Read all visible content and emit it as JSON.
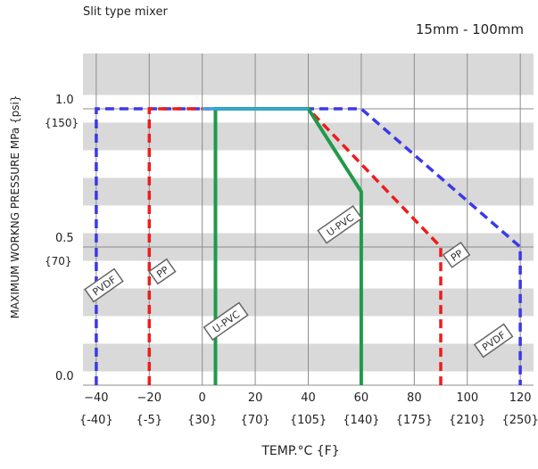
{
  "header": {
    "subtitle": "Slit type mixer",
    "size_range": "15mm - 100mm"
  },
  "chart_data": {
    "type": "line",
    "title": "",
    "xlabel": "TEMP.°C {F}",
    "ylabel": "MAXIMUM WORKNG PRESSURE   MPa {psi}",
    "xlim": [
      -45,
      125
    ],
    "ylim": [
      0.0,
      1.2
    ],
    "x_ticks": [
      {
        "c": -40,
        "f": "{-40}"
      },
      {
        "c": -20,
        "f": "{-5}"
      },
      {
        "c": 0,
        "f": "{30}"
      },
      {
        "c": 20,
        "f": "{70}"
      },
      {
        "c": 40,
        "f": "{105}"
      },
      {
        "c": 60,
        "f": "{140}"
      },
      {
        "c": 80,
        "f": "{175}"
      },
      {
        "c": 100,
        "f": "{210}"
      },
      {
        "c": 120,
        "f": "{250}"
      }
    ],
    "y_ticks": [
      {
        "value": 0.0,
        "label": "0.0",
        "psi": ""
      },
      {
        "value": 0.5,
        "label": "0.5",
        "psi": "{70}"
      },
      {
        "value": 1.0,
        "label": "1.0",
        "psi": "{150}"
      }
    ],
    "stripes": [
      [
        0.05,
        0.15
      ],
      [
        0.25,
        0.35
      ],
      [
        0.45,
        0.55
      ],
      [
        0.65,
        0.75
      ],
      [
        0.85,
        0.95
      ],
      [
        1.05,
        1.2
      ]
    ],
    "grid": true,
    "series": [
      {
        "name": "PVDF",
        "color": "#3a3ae8",
        "dash": true,
        "points": [
          [
            -40,
            0.0
          ],
          [
            -40,
            1.0
          ],
          [
            60,
            1.0
          ],
          [
            120,
            0.5
          ],
          [
            120,
            0.0
          ]
        ]
      },
      {
        "name": "PP",
        "color": "#ee1c1c",
        "dash": true,
        "points": [
          [
            -20,
            0.0
          ],
          [
            -20,
            1.0
          ],
          [
            40,
            1.0
          ],
          [
            90,
            0.5
          ],
          [
            90,
            0.0
          ]
        ]
      },
      {
        "name": "U-PVC",
        "color": "#1f9a4a",
        "dash": false,
        "points": [
          [
            5,
            0.0
          ],
          [
            5,
            1.0
          ],
          [
            40,
            1.0
          ],
          [
            60,
            0.7
          ],
          [
            60,
            0.0
          ]
        ]
      }
    ],
    "overlap_segment": {
      "color": "#35a9e0",
      "from": [
        0,
        1.0
      ],
      "to": [
        40,
        1.0
      ]
    },
    "annotations": [
      {
        "text": "PVDF",
        "x": -37,
        "y": 0.36,
        "angle": -35
      },
      {
        "text": "PP",
        "x": -15,
        "y": 0.41,
        "angle": -35
      },
      {
        "text": "U-PVC",
        "x": 9,
        "y": 0.23,
        "angle": -35
      },
      {
        "text": "U-PVC",
        "x": 52,
        "y": 0.58,
        "angle": -35
      },
      {
        "text": "PP",
        "x": 96,
        "y": 0.47,
        "angle": -35
      },
      {
        "text": "PVDF",
        "x": 110,
        "y": 0.16,
        "angle": -35
      }
    ]
  }
}
